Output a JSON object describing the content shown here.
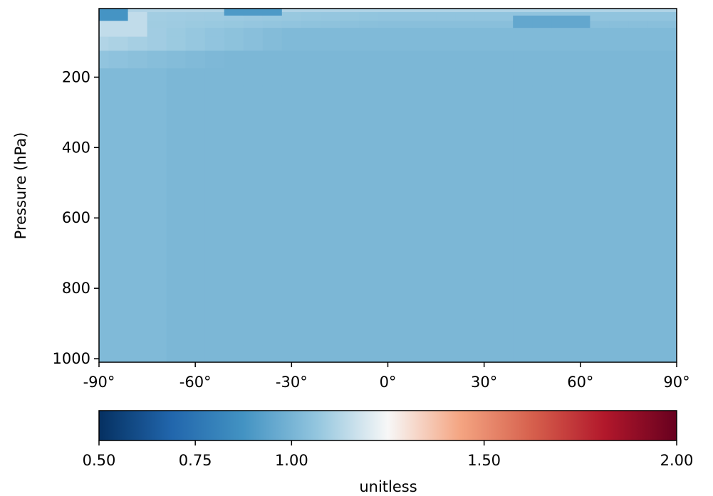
{
  "chart_data": {
    "type": "heatmap",
    "title": "",
    "xlabel": "",
    "ylabel": "Pressure (hPa)",
    "x_ticks": [
      {
        "value": -90,
        "label": "-90°"
      },
      {
        "value": -60,
        "label": "-60°"
      },
      {
        "value": -30,
        "label": "-30°"
      },
      {
        "value": 0,
        "label": "0°"
      },
      {
        "value": 30,
        "label": "30°"
      },
      {
        "value": 60,
        "label": "60°"
      },
      {
        "value": 90,
        "label": "90°"
      }
    ],
    "y_ticks": [
      {
        "value": 200,
        "label": "200"
      },
      {
        "value": 400,
        "label": "400"
      },
      {
        "value": 600,
        "label": "600"
      },
      {
        "value": 800,
        "label": "800"
      },
      {
        "value": 1000,
        "label": "1000"
      }
    ],
    "xlim": [
      -90,
      90
    ],
    "ylim": [
      1010,
      5
    ],
    "latitudes": [
      -90,
      -84,
      -78,
      -72,
      -66,
      -60,
      -54,
      -48,
      -42,
      -36,
      -30,
      -24,
      -18,
      -12,
      -6,
      0,
      6,
      12,
      18,
      24,
      30,
      36,
      42,
      48,
      54,
      60,
      66,
      72,
      78,
      84,
      90
    ],
    "pressure_levels": [
      10,
      20,
      30,
      50,
      70,
      100,
      150,
      200,
      250,
      300,
      400,
      500,
      600,
      700,
      850,
      925,
      1000
    ],
    "colorbar": {
      "colormap": "RdBu_r",
      "range": [
        0.5,
        2.0
      ],
      "label": "unitless",
      "ticks": [
        {
          "value": 0.5,
          "label": "0.50"
        },
        {
          "value": 0.75,
          "label": "0.75"
        },
        {
          "value": 1.0,
          "label": "1.00"
        },
        {
          "value": 1.5,
          "label": "1.50"
        },
        {
          "value": 2.0,
          "label": "2.00"
        }
      ]
    },
    "value_field": {
      "description_values": {
        "background": 1.01,
        "upper_layer_near_10hPa": 1.12,
        "polar_south_upper_20_70hPa": 1.15,
        "local_low_south_pole_10_30hPa": 0.88,
        "local_low_60N_30_50hPa": 0.95
      }
    }
  }
}
